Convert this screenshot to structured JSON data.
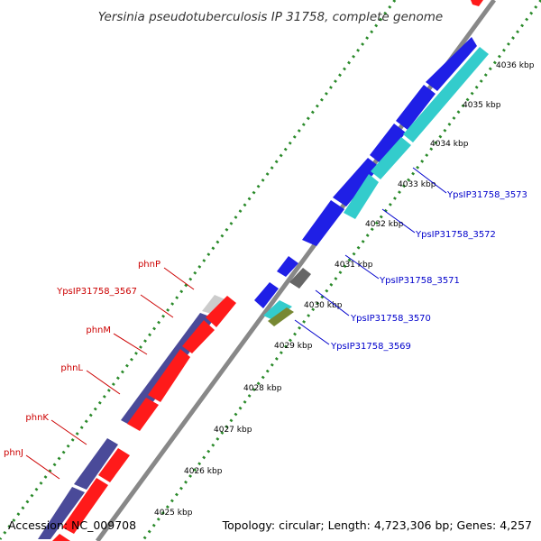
{
  "title": "Yersinia pseudotuberculosis IP 31758, complete genome",
  "accession": "Accession: NC_009708",
  "summary": "Topology: circular; Length: 4,723,306 bp; Genes: 4,257",
  "ticks": [
    "4025 kbp",
    "4026 kbp",
    "4027 kbp",
    "4028 kbp",
    "4029 kbp",
    "4030 kbp",
    "4031 kbp",
    "4032 kbp",
    "4033 kbp",
    "4034 kbp",
    "4035 kbp",
    "4036 kbp"
  ],
  "left_labels": [
    "phnP",
    "YpsIP31758_3567",
    "phnM",
    "phnL",
    "phnK",
    "phnJ"
  ],
  "right_labels": [
    "YpsIP31758_3573",
    "YpsIP31758_3572",
    "YpsIP31758_3571",
    "YpsIP31758_3570",
    "YpsIP31758_3569"
  ],
  "colors": {
    "forward_gene": "#1f1fe6",
    "reverse_gene": "#ff1a1a",
    "cyan_gene": "#33cccc",
    "slate_gene": "#4a4a99",
    "grey_gene": "#666666",
    "lightgrey_gene": "#cccccc",
    "olive_gene": "#778833",
    "backbone": "#888888",
    "dots": "#2a8a2a",
    "label_left": "#cc0000",
    "label_right": "#0000cc"
  }
}
